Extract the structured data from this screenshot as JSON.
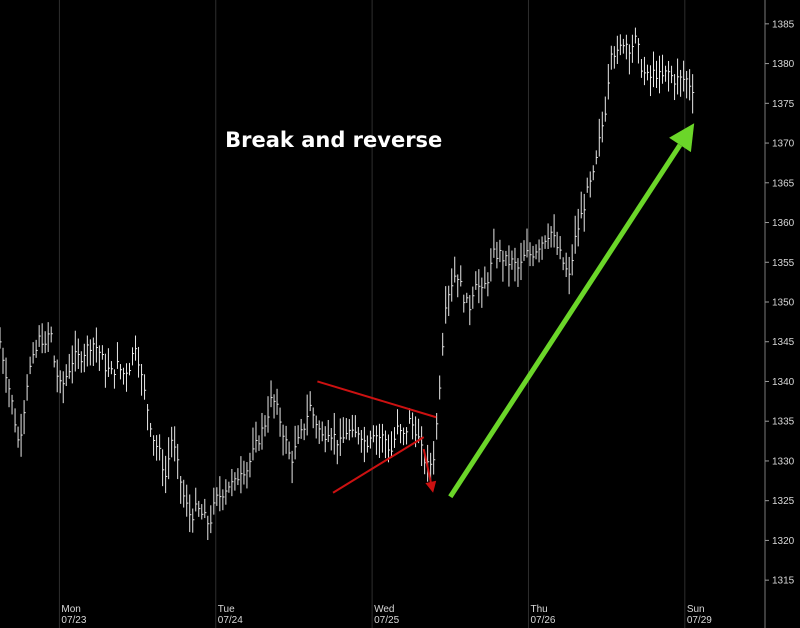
{
  "chart_data": {
    "type": "line",
    "title": "",
    "xlabel": "",
    "ylabel": "",
    "ylim": [
      1312,
      1388
    ],
    "y_ticks": [
      1315,
      1320,
      1325,
      1330,
      1335,
      1340,
      1345,
      1350,
      1355,
      1360,
      1365,
      1370,
      1375,
      1380,
      1385
    ],
    "y_tick_labels": [
      "1315",
      "1320",
      "1325",
      "1330",
      "1335",
      "1340",
      "1345",
      "1350",
      "1355",
      "1360",
      "1365",
      "1370",
      "1375",
      "1380",
      "1385"
    ],
    "x_ticks": [
      {
        "day": "Mon",
        "date": "07/23",
        "x": 1
      },
      {
        "day": "Tue",
        "date": "07/24",
        "x": 2
      },
      {
        "day": "Wed",
        "date": "07/25",
        "x": 3
      },
      {
        "day": "Thu",
        "date": "07/26",
        "x": 4
      },
      {
        "day": "Sun",
        "date": "07/29",
        "x": 5
      }
    ],
    "xlim": [
      0.62,
      5.5
    ],
    "grid": "vertical",
    "series": [
      {
        "color": "#e8e8e8",
        "points": [
          [
            0.62,
            1345
          ],
          [
            0.66,
            1341
          ],
          [
            0.7,
            1337
          ],
          [
            0.74,
            1332
          ],
          [
            0.77,
            1336
          ],
          [
            0.8,
            1341
          ],
          [
            0.84,
            1343
          ],
          [
            0.88,
            1346
          ],
          [
            0.91,
            1344
          ],
          [
            0.94,
            1347
          ],
          [
            0.97,
            1342
          ],
          [
            1.01,
            1339
          ],
          [
            1.05,
            1341
          ],
          [
            1.09,
            1343
          ],
          [
            1.13,
            1343
          ],
          [
            1.17,
            1344
          ],
          [
            1.21,
            1345
          ],
          [
            1.25,
            1344
          ],
          [
            1.29,
            1342
          ],
          [
            1.33,
            1341
          ],
          [
            1.37,
            1342
          ],
          [
            1.41,
            1341
          ],
          [
            1.45,
            1342
          ],
          [
            1.49,
            1345
          ],
          [
            1.52,
            1341
          ],
          [
            1.56,
            1337
          ],
          [
            1.6,
            1333
          ],
          [
            1.64,
            1331
          ],
          [
            1.68,
            1328
          ],
          [
            1.72,
            1333
          ],
          [
            1.76,
            1329
          ],
          [
            1.8,
            1325
          ],
          [
            1.84,
            1323
          ],
          [
            1.88,
            1324
          ],
          [
            1.92,
            1323
          ],
          [
            1.96,
            1322
          ],
          [
            2.0,
            1325
          ],
          [
            2.04,
            1326
          ],
          [
            2.08,
            1327
          ],
          [
            2.12,
            1327
          ],
          [
            2.16,
            1329
          ],
          [
            2.2,
            1329
          ],
          [
            2.24,
            1331
          ],
          [
            2.28,
            1333
          ],
          [
            2.32,
            1335
          ],
          [
            2.36,
            1338
          ],
          [
            2.4,
            1336
          ],
          [
            2.44,
            1333
          ],
          [
            2.48,
            1330
          ],
          [
            2.52,
            1332
          ],
          [
            2.56,
            1334
          ],
          [
            2.6,
            1337
          ],
          [
            2.64,
            1335
          ],
          [
            2.68,
            1333
          ],
          [
            2.72,
            1334
          ],
          [
            2.76,
            1333
          ],
          [
            2.8,
            1332
          ],
          [
            2.84,
            1334
          ],
          [
            2.88,
            1333
          ],
          [
            2.92,
            1334
          ],
          [
            2.96,
            1332
          ],
          [
            3.0,
            1334
          ],
          [
            3.04,
            1333
          ],
          [
            3.08,
            1333
          ],
          [
            3.12,
            1331
          ],
          [
            3.16,
            1334
          ],
          [
            3.2,
            1333
          ],
          [
            3.24,
            1335
          ],
          [
            3.28,
            1334
          ],
          [
            3.32,
            1331
          ],
          [
            3.36,
            1329
          ],
          [
            3.4,
            1331
          ],
          [
            3.44,
            1342
          ],
          [
            3.47,
            1350
          ],
          [
            3.5,
            1352
          ],
          [
            3.54,
            1354
          ],
          [
            3.58,
            1351
          ],
          [
            3.62,
            1349
          ],
          [
            3.66,
            1353
          ],
          [
            3.7,
            1351
          ],
          [
            3.74,
            1353
          ],
          [
            3.78,
            1356
          ],
          [
            3.82,
            1356
          ],
          [
            3.86,
            1355
          ],
          [
            3.9,
            1355
          ],
          [
            3.94,
            1354
          ],
          [
            3.98,
            1356
          ],
          [
            4.02,
            1356
          ],
          [
            4.06,
            1357
          ],
          [
            4.1,
            1358
          ],
          [
            4.14,
            1359
          ],
          [
            4.18,
            1357
          ],
          [
            4.22,
            1355
          ],
          [
            4.26,
            1353
          ],
          [
            4.3,
            1358
          ],
          [
            4.34,
            1361
          ],
          [
            4.38,
            1364
          ],
          [
            4.42,
            1366
          ],
          [
            4.46,
            1371
          ],
          [
            4.49,
            1374
          ],
          [
            4.53,
            1382
          ],
          [
            4.57,
            1381
          ],
          [
            4.61,
            1383
          ],
          [
            4.65,
            1382
          ],
          [
            4.69,
            1383
          ],
          [
            4.73,
            1379
          ],
          [
            4.77,
            1378
          ],
          [
            4.81,
            1379
          ],
          [
            4.85,
            1378
          ],
          [
            4.89,
            1379
          ],
          [
            4.93,
            1378
          ],
          [
            4.97,
            1378
          ],
          [
            5.01,
            1378
          ],
          [
            5.05,
            1377
          ]
        ]
      }
    ],
    "annotations": [
      {
        "kind": "text",
        "text": "Break and reverse",
        "x": 2.06,
        "y": 1369.5
      },
      {
        "kind": "line",
        "color": "#cc1111",
        "from": [
          2.65,
          1340
        ],
        "to": [
          3.41,
          1335.5
        ]
      },
      {
        "kind": "line",
        "color": "#cc1111",
        "from": [
          2.75,
          1326
        ],
        "to": [
          3.33,
          1333
        ]
      },
      {
        "kind": "arrow",
        "color": "#cc1111",
        "from": [
          3.33,
          1331.5
        ],
        "to": [
          3.39,
          1326
        ]
      },
      {
        "kind": "arrow",
        "color": "#6bd629",
        "from": [
          3.5,
          1325.5
        ],
        "to": [
          5.06,
          1372.5
        ]
      }
    ]
  }
}
